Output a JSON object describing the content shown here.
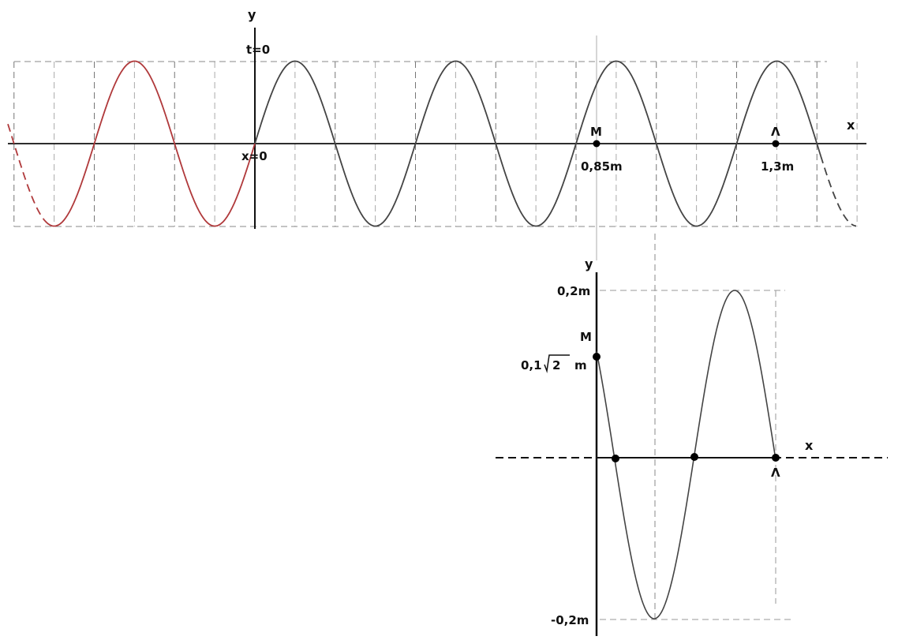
{
  "top_graph": {
    "y_label": "y",
    "x_label": "x",
    "time_label": "t=0",
    "origin_label": "x=0",
    "point_m": {
      "name": "M",
      "value": "0,85m"
    },
    "point_a": {
      "name": "Λ",
      "value": "1,3m"
    },
    "colors": {
      "wave": "#444444",
      "past_wave": "#b0393b",
      "grid": "#888888"
    }
  },
  "bottom_graph": {
    "y_label": "y",
    "x_label": "x",
    "y_max_label": "0,2m",
    "y_min_label": "-0,2m",
    "point_m": {
      "name": "M",
      "value_prefix": "0,1",
      "value_root": "2",
      "value_unit": "m"
    },
    "point_a": {
      "name": "Λ"
    }
  }
}
